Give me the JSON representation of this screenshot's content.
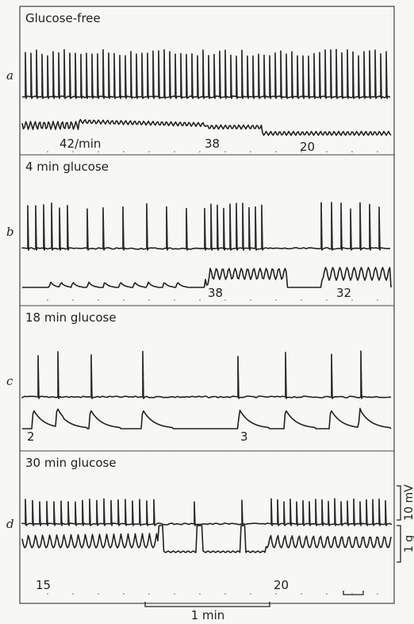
{
  "panels": [
    {
      "letter": "a",
      "title": "Glucose-free",
      "annotations": [
        "42/min",
        "38",
        "20"
      ]
    },
    {
      "letter": "b",
      "title": "4 min glucose",
      "annotations": [
        "38",
        "32"
      ]
    },
    {
      "letter": "c",
      "title": "18 min glucose",
      "annotations": [
        "2",
        "3"
      ]
    },
    {
      "letter": "d",
      "title": "30 min glucose",
      "annotations": [
        "15",
        "20"
      ]
    }
  ],
  "scale_bars": {
    "voltage": "10 mV",
    "force": "1 g",
    "time": "1 min"
  }
}
